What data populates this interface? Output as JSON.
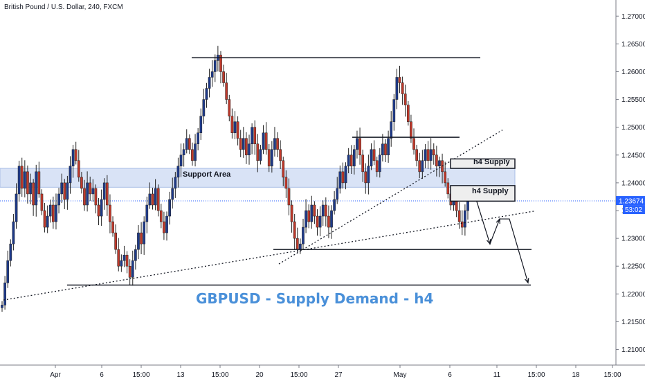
{
  "chart_data": {
    "type": "candlestick",
    "symbol_header": "British Pound / U.S. Dollar, 240, FXCM",
    "title": "GBPUSD - Supply Demand - h4",
    "y_ticks": [
      "1.27000",
      "1.26500",
      "1.26000",
      "1.25500",
      "1.25000",
      "1.24500",
      "1.24000",
      "1.23500",
      "1.23000",
      "1.22500",
      "1.22000",
      "1.21500",
      "1.21000"
    ],
    "y_tick_values": [
      1.27,
      1.265,
      1.26,
      1.255,
      1.25,
      1.245,
      1.24,
      1.235,
      1.23,
      1.225,
      1.22,
      1.215,
      1.21
    ],
    "ylim": [
      1.2072,
      1.2729
    ],
    "x_ticks": [
      "Apr",
      "6",
      "15:00",
      "13",
      "15:00",
      "20",
      "15:00",
      "27",
      "May",
      "6",
      "11",
      "15:00",
      "18",
      "15:00"
    ],
    "price_label": "1.23674",
    "timer_label": "53:02",
    "zones": [
      {
        "name": "Support Area",
        "y_top": 1.2426,
        "y_bottom": 1.2392
      },
      {
        "name": "h4 Supply",
        "y_top": 1.2443,
        "y_bottom": 1.2426
      },
      {
        "name": "h4 Supply",
        "y_top": 1.2395,
        "y_bottom": 1.2367
      }
    ],
    "levels": [
      1.2625,
      1.2482,
      1.228,
      1.2216
    ],
    "current_price": 1.23674,
    "closes": [
      1.218,
      1.222,
      1.226,
      1.229,
      1.233,
      1.238,
      1.243,
      1.239,
      1.242,
      1.238,
      1.24,
      1.236,
      1.242,
      1.238,
      1.235,
      1.232,
      1.234,
      1.236,
      1.233,
      1.236,
      1.238,
      1.24,
      1.237,
      1.24,
      1.243,
      1.246,
      1.244,
      1.241,
      1.239,
      1.236,
      1.24,
      1.238,
      1.239,
      1.236,
      1.234,
      1.237,
      1.24,
      1.236,
      1.233,
      1.231,
      1.228,
      1.225,
      1.226,
      1.227,
      1.225,
      1.223,
      1.226,
      1.228,
      1.231,
      1.229,
      1.233,
      1.236,
      1.238,
      1.236,
      1.239,
      1.235,
      1.233,
      1.231,
      1.234,
      1.237,
      1.239,
      1.241,
      1.243,
      1.245,
      1.246,
      1.248,
      1.246,
      1.244,
      1.247,
      1.249,
      1.252,
      1.255,
      1.257,
      1.259,
      1.26,
      1.262,
      1.263,
      1.26,
      1.258,
      1.255,
      1.252,
      1.249,
      1.251,
      1.248,
      1.246,
      1.248,
      1.245,
      1.247,
      1.25,
      1.247,
      1.244,
      1.246,
      1.249,
      1.246,
      1.243,
      1.246,
      1.248,
      1.246,
      1.244,
      1.241,
      1.239,
      1.236,
      1.233,
      1.23,
      1.228,
      1.229,
      1.232,
      1.235,
      1.233,
      1.236,
      1.234,
      1.232,
      1.234,
      1.236,
      1.234,
      1.232,
      1.235,
      1.237,
      1.239,
      1.242,
      1.24,
      1.243,
      1.245,
      1.243,
      1.246,
      1.248,
      1.245,
      1.242,
      1.24,
      1.243,
      1.246,
      1.244,
      1.242,
      1.245,
      1.247,
      1.245,
      1.248,
      1.251,
      1.255,
      1.259,
      1.258,
      1.256,
      1.254,
      1.251,
      1.248,
      1.246,
      1.244,
      1.242,
      1.244,
      1.246,
      1.244,
      1.246,
      1.245,
      1.243,
      1.244,
      1.242,
      1.24,
      1.238,
      1.236,
      1.237,
      1.235,
      1.233,
      1.232,
      1.235,
      1.237
    ]
  }
}
